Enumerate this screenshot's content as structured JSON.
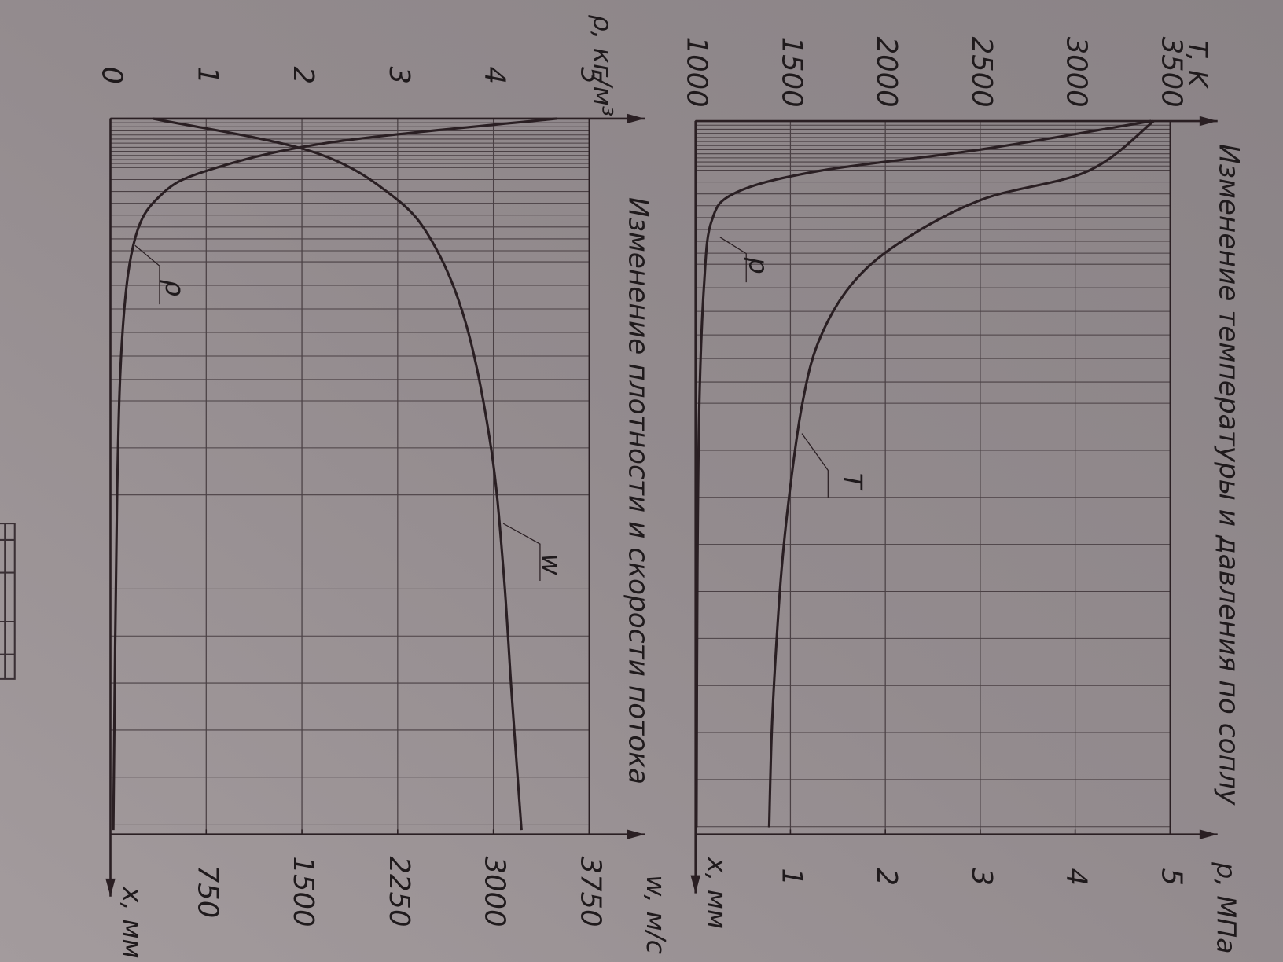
{
  "chart_data": [
    {
      "type": "line",
      "title": "Изменение температуры и давления по соплу",
      "xlabel": "x, мм",
      "ylabel": "T, K",
      "y2label": "p, МПа",
      "xlim": [
        0,
        100
      ],
      "ylim": [
        1000,
        3500
      ],
      "yticks": [
        1000,
        1500,
        2000,
        2500,
        3000,
        3500
      ],
      "y2lim": [
        0,
        5
      ],
      "y2ticks": [
        1,
        2,
        3,
        4,
        5
      ],
      "grid": true,
      "series": [
        {
          "name": "T",
          "color": "#2a1f23",
          "x": [
            0,
            7,
            11,
            17,
            23,
            31,
            40,
            52,
            63,
            75,
            86,
            99
          ],
          "values": [
            3414,
            3069,
            2509,
            2078,
            1819,
            1647,
            1560,
            1496,
            1453,
            1422,
            1401,
            1388
          ]
        },
        {
          "name": "p",
          "color": "#2a1f23",
          "axis": "y2",
          "x": [
            0,
            4,
            7,
            10,
            14,
            23,
            40,
            63,
            99
          ],
          "values": [
            4.8,
            3.0,
            1.3,
            0.43,
            0.17,
            0.09,
            0.04,
            0.02,
            0.01
          ]
        }
      ]
    },
    {
      "type": "line",
      "title": "Изменение плотности и скорости потока",
      "xlabel": "x, мм",
      "ylabel": "ρ, кг/м³",
      "y2label": "w, м/с",
      "xlim": [
        0,
        100
      ],
      "ylim": [
        0,
        5
      ],
      "yticks": [
        0,
        1,
        2,
        3,
        4,
        5
      ],
      "y2lim": [
        0,
        3750
      ],
      "y2ticks": [
        750,
        1500,
        2250,
        3000,
        3750
      ],
      "grid": true,
      "series": [
        {
          "name": "ρ",
          "color": "#2a1f23",
          "x": [
            0,
            3.4,
            7.4,
            10.9,
            16.6,
            29.1,
            52,
            99.4
          ],
          "values": [
            4.66,
            2.26,
            0.98,
            0.51,
            0.26,
            0.13,
            0.07,
            0.03
          ]
        },
        {
          "name": "w",
          "color": "#2a1f23",
          "axis": "y2",
          "x": [
            0,
            4.6,
            10.9,
            17.7,
            29.1,
            46.3,
            63.4,
            80.6,
            99.4
          ],
          "values": [
            332,
            1578,
            2217,
            2537,
            2792,
            2984,
            3080,
            3144,
            3220
          ]
        }
      ]
    }
  ]
}
